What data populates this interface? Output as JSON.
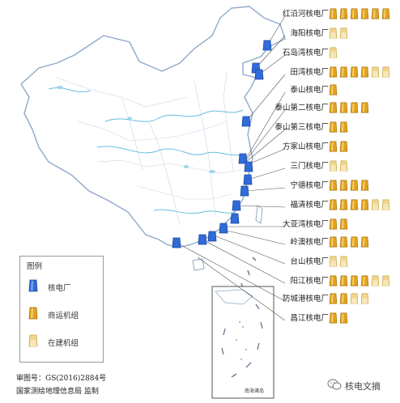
{
  "plants": [
    {
      "name": "红沿河核电厂",
      "operating": 6,
      "construction": 0
    },
    {
      "name": "海阳核电厂",
      "operating": 0,
      "construction": 2
    },
    {
      "name": "石岛湾核电厂",
      "operating": 0,
      "construction": 1
    },
    {
      "name": "田湾核电厂",
      "operating": 4,
      "construction": 2
    },
    {
      "name": "泰山核电厂",
      "operating": 1,
      "construction": 0
    },
    {
      "name": "泰山第二核电厂",
      "operating": 4,
      "construction": 0
    },
    {
      "name": "泰山第三核电厂",
      "operating": 2,
      "construction": 0
    },
    {
      "name": "方家山核电厂",
      "operating": 2,
      "construction": 0
    },
    {
      "name": "三门核电厂",
      "operating": 0,
      "construction": 2
    },
    {
      "name": "宁德核电厂",
      "operating": 4,
      "construction": 0
    },
    {
      "name": "福清核电厂",
      "operating": 4,
      "construction": 2
    },
    {
      "name": "大亚湾核电厂",
      "operating": 2,
      "construction": 0
    },
    {
      "name": "岭澳核电厂",
      "operating": 4,
      "construction": 0
    },
    {
      "name": "台山核电厂",
      "operating": 0,
      "construction": 2
    },
    {
      "name": "阳江核电厂",
      "operating": 4,
      "construction": 2
    },
    {
      "name": "防城港核电厂",
      "operating": 2,
      "construction": 2
    },
    {
      "name": "昌江核电厂",
      "operating": 2,
      "construction": 0
    }
  ],
  "legend": {
    "title": "图例",
    "plant": "核电厂",
    "operating": "商运机组",
    "construction": "在建机组"
  },
  "review_number": "审图号：GS(2016)2884号",
  "issuer": "国家测绘地理信息局 监制",
  "inset_label": "南海诸岛",
  "watermark": "核电文摘",
  "colors": {
    "plant_marker": "#2f6bd9",
    "operating_unit": "#e3a21c",
    "construction_unit": "#f1d58a",
    "border_line": "#8fa8c8",
    "river": "#69bde0"
  }
}
